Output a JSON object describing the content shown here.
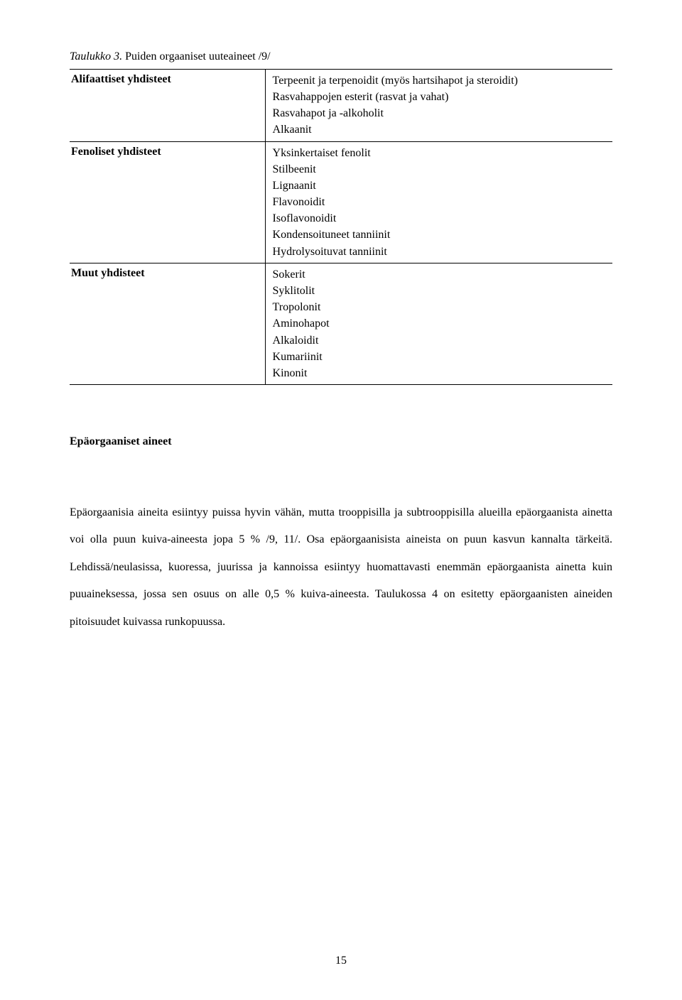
{
  "caption": {
    "italic_part": "Taulukko 3.",
    "regular_part": " Puiden orgaaniset uuteaineet /9/"
  },
  "table": {
    "rows": [
      {
        "label": "Alifaattiset yhdisteet",
        "values": [
          "Terpeenit ja terpenoidit (myös hartsihapot ja steroidit)",
          "Rasvahappojen esterit (rasvat ja vahat)",
          "Rasvahapot ja -alkoholit",
          "Alkaanit"
        ]
      },
      {
        "label": "Fenoliset yhdisteet",
        "values": [
          "Yksinkertaiset fenolit",
          "Stilbeenit",
          "Lignaanit",
          "Flavonoidit",
          "Isoflavonoidit",
          "Kondensoituneet tanniinit",
          "Hydrolysoituvat tanniinit"
        ]
      },
      {
        "label": "Muut yhdisteet",
        "values": [
          "Sokerit",
          "Syklitolit",
          "Tropolonit",
          "Aminohapot",
          "Alkaloidit",
          "Kumariinit",
          "Kinonit"
        ]
      }
    ]
  },
  "section_heading": "Epäorgaaniset aineet",
  "body_text": "Epäorgaanisia aineita esiintyy puissa hyvin vähän, mutta trooppisilla ja subtrooppisilla alueilla epäorgaanista ainetta voi olla puun kuiva-aineesta jopa 5 % /9, 11/. Osa epäorgaanisista aineista on puun kasvun kannalta tärkeitä. Lehdissä/neulasissa, kuoressa, juurissa ja kannoissa esiintyy huomattavasti enemmän epäorgaanista ainetta kuin puuaineksessa, jossa sen osuus on alle 0,5 % kuiva-aineesta. Taulukossa 4 on esitetty epäorgaanisten aineiden pitoisuudet kuivassa runkopuussa.",
  "page_number": "15"
}
